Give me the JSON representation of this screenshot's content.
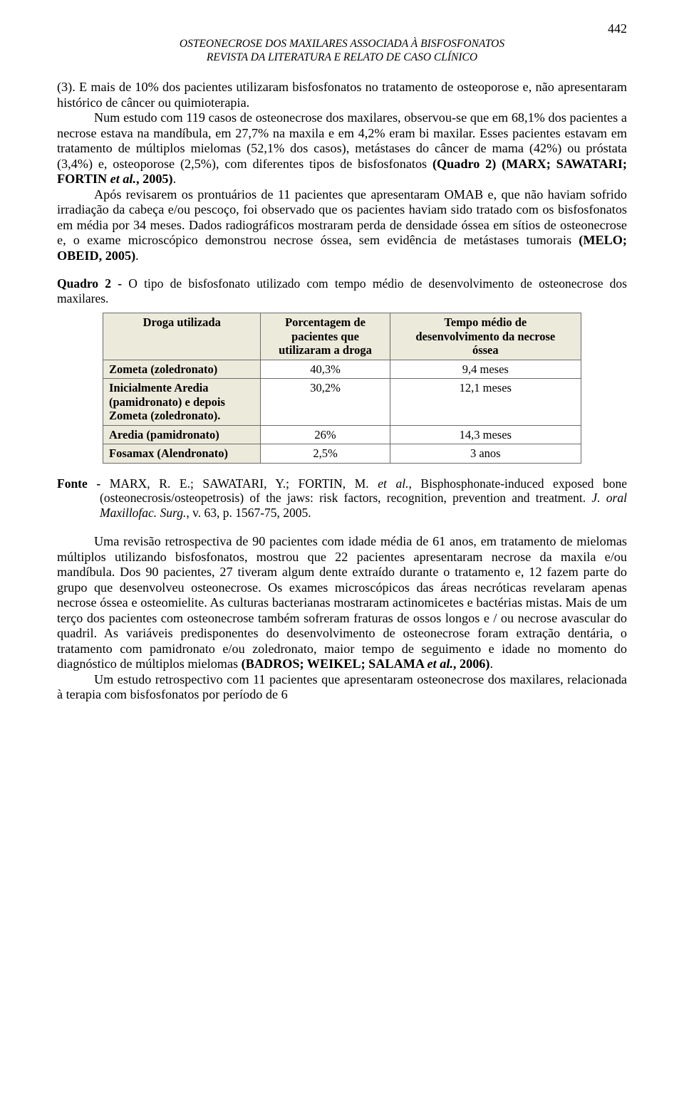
{
  "page_number": "442",
  "running_header": {
    "line1": "OSTEONECROSE DOS MAXILARES ASSOCIADA À BISFOSFONATOS",
    "line2": "REVISTA DA LITERATURA E RELATO DE CASO CLÍNICO"
  },
  "paragraph1": {
    "pre": "(3).  E mais de 10% dos pacientes utilizaram bisfosfonatos no tratamento de osteoporose e, não apresentaram histórico de câncer ou quimioterapia.",
    "body2a": "Num estudo com 119 casos de osteonecrose dos maxilares, observou-se que em 68,1% dos pacientes a necrose estava na mandíbula, em 27,7% na maxila e em 4,2% eram bi maxilar.  Esses pacientes estavam em tratamento de múltiplos mielomas (52,1% dos casos), metástases do câncer de mama (42%) ou próstata (3,4%) e, osteoporose (2,5%), com diferentes tipos de bisfosfonatos ",
    "body2_bold1": "(Quadro 2) (MARX; SAWATARI; FORTIN ",
    "body2_em1": "et al.",
    "body2_bold2": ", 2005)",
    "body2_end": ".",
    "body3a": "Após revisarem os prontuários de 11 pacientes que apresentaram OMAB e, que não haviam sofrido irradiação da cabeça e/ou pescoço, foi observado que os pacientes haviam sido tratado com os bisfosfonatos em média por 34 meses. Dados radiográficos mostraram perda de densidade óssea em sítios de osteonecrose e, o exame microscópico demonstrou necrose óssea, sem evidência de metástases tumorais ",
    "body3_bold": "(MELO; OBEID, 2005)",
    "body3_end": "."
  },
  "quadro_caption": {
    "label": "Quadro 2 - ",
    "text": "O tipo de bisfosfonato utilizado com tempo médio de desenvolvimento de osteonecrose dos maxilares."
  },
  "table": {
    "headers": {
      "col1": "Droga utilizada",
      "col2a": "Porcentagem de",
      "col2b": "pacientes que",
      "col2c": "utilizaram a droga",
      "col3a": "Tempo médio de",
      "col3b": "desenvolvimento da necrose",
      "col3c": "óssea"
    },
    "rows": [
      {
        "drug": "Zometa (zoledronato)",
        "pct": "40,3%",
        "time": "9,4 meses"
      },
      {
        "drug": "Inicialmente Aredia (pamidronato) e depois Zometa (zoledronato).",
        "pct": "30,2%",
        "time": "12,1 meses"
      },
      {
        "drug": "Aredia (pamidronato)",
        "pct": "26%",
        "time": "14,3 meses"
      },
      {
        "drug": "Fosamax (Alendronato)",
        "pct": "2,5%",
        "time": "3 anos"
      }
    ],
    "header_bg": "#eceadb",
    "drug_bg": "#eceadb",
    "border_color": "#6b6b6b"
  },
  "fonte": {
    "label": "Fonte - ",
    "authors": "MARX, R. E.; SAWATARI, Y.; FORTIN, M. ",
    "etal": "et al.",
    "title": ", Bisphosphonate-induced exposed bone (osteonecrosis/osteopetrosis) of the jaws: risk factors, recognition, prevention and treatment. ",
    "journal": "J. oral Maxillofac.  Surg.",
    "ref_tail": ", v. 63, p. 1567-75, 2005."
  },
  "paragraph2": {
    "p1a": "Uma revisão retrospectiva de 90 pacientes com idade média de 61 anos, em tratamento de mielomas múltiplos utilizando bisfosfonatos, mostrou que 22 pacientes apresentaram necrose da maxila e/ou mandíbula.  Dos 90 pacientes, 27 tiveram algum dente extraído durante o tratamento e, 12 fazem parte do grupo que desenvolveu osteonecrose.  Os exames microscópicos das áreas necróticas revelaram apenas necrose óssea e osteomielite.  As culturas bacterianas mostraram actinomicetes e bactérias mistas.  Mais de um terço dos pacientes com osteonecrose também sofreram fraturas de ossos longos e / ou necrose avascular do quadril.  As variáveis predisponentes do desenvolvimento de osteonecrose foram extração dentária, o tratamento com pamidronato e/ou zoledronato, maior tempo de seguimento e idade no momento do diagnóstico de múltiplos mielomas ",
    "p1_bold1": "(BADROS; WEIKEL; SALAMA ",
    "p1_em": "et al.",
    "p1_bold2": ", 2006)",
    "p1_end": ".",
    "p2": "Um estudo retrospectivo com 11 pacientes que apresentaram osteonecrose dos maxilares, relacionada à terapia com bisfosfonatos por período de 6"
  }
}
